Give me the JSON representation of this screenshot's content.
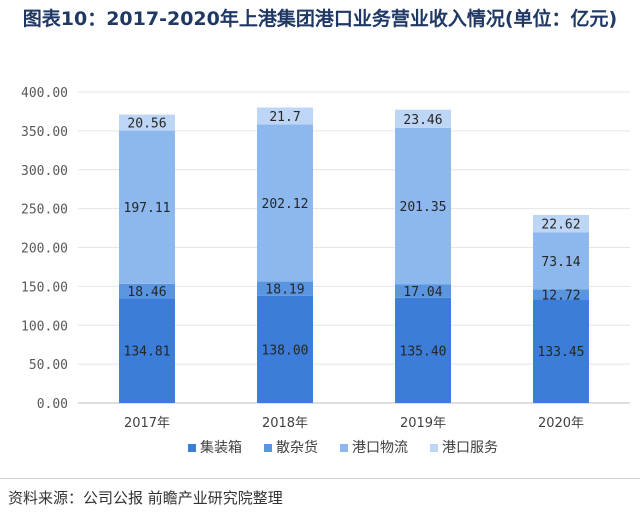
{
  "title": "图表10：2017-2020年上港集团港口业务营业收入情况(单位：亿元)",
  "source": "资料来源：公司公报 前瞻产业研究院整理",
  "colors": {
    "集装箱": "#3b7dd8",
    "散杂货": "#5a95e0",
    "港口物流": "#8cb8ee",
    "港口服务": "#bed6f5"
  },
  "chart_data": {
    "type": "bar",
    "stacked": true,
    "categories": [
      "2017年",
      "2018年",
      "2019年",
      "2020年"
    ],
    "series": [
      {
        "name": "集装箱",
        "values": [
          134.81,
          138.0,
          135.4,
          133.45
        ],
        "labels": [
          "134.81",
          "138.00",
          "135.40",
          "133.45"
        ]
      },
      {
        "name": "散杂货",
        "values": [
          18.46,
          18.19,
          17.04,
          12.72
        ],
        "labels": [
          "18.46",
          "18.19",
          "17.04",
          "12.72"
        ]
      },
      {
        "name": "港口物流",
        "values": [
          197.11,
          202.12,
          201.35,
          73.14
        ],
        "labels": [
          "197.11",
          "202.12",
          "201.35",
          "73.14"
        ]
      },
      {
        "name": "港口服务",
        "values": [
          20.56,
          21.7,
          23.46,
          22.62
        ],
        "labels": [
          "20.56",
          "21.7",
          "23.46",
          "22.62"
        ]
      }
    ],
    "yticks": [
      "0.00",
      "50.00",
      "100.00",
      "150.00",
      "200.00",
      "250.00",
      "300.00",
      "350.00",
      "400.00"
    ],
    "ylim": [
      0,
      400
    ],
    "grid": true,
    "legend": "bottom"
  }
}
